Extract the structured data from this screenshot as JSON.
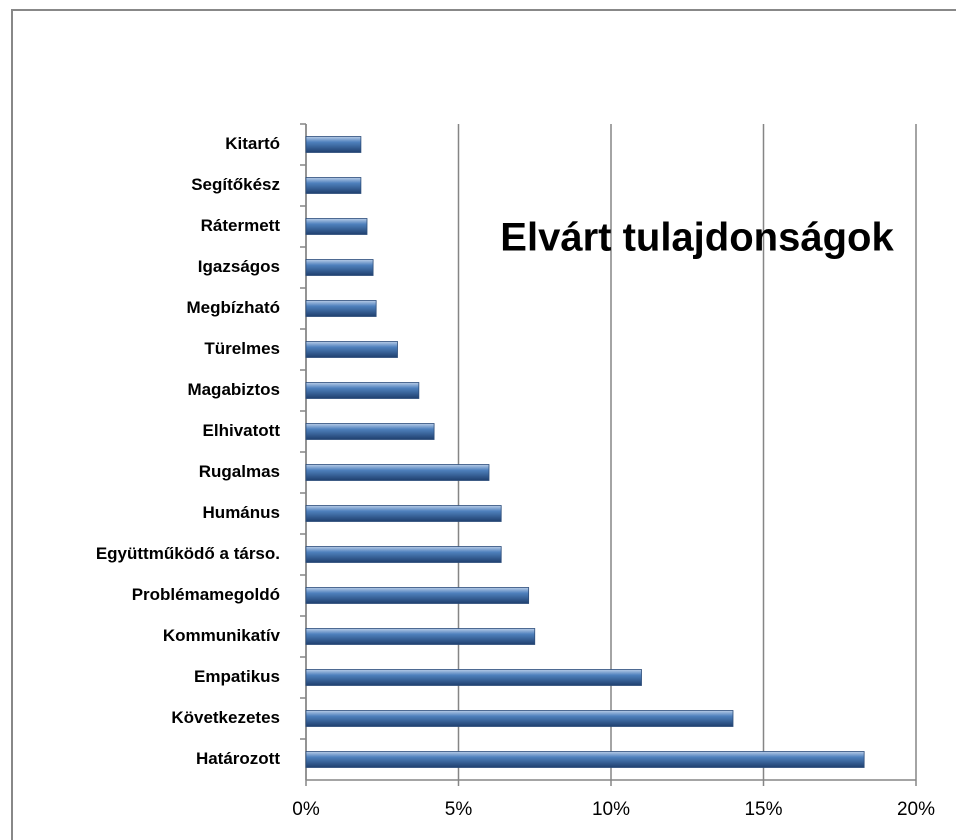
{
  "chart_data": {
    "type": "bar",
    "orientation": "horizontal",
    "title": "Elvárt tulajdonságok",
    "categories": [
      "Kitartó",
      "Segítőkész",
      "Rátermett",
      "Igazságos",
      "Megbízható",
      "Türelmes",
      "Magabiztos",
      "Elhivatott",
      "Rugalmas",
      "Humánus",
      "Együttműködő a társo.",
      "Problémamegoldó",
      "Kommunikatív",
      "Empatikus",
      "Következetes",
      "Határozott"
    ],
    "values": [
      1.8,
      1.8,
      2.0,
      2.2,
      2.3,
      3.0,
      3.7,
      4.2,
      6.0,
      6.4,
      6.4,
      7.3,
      7.5,
      11.0,
      14.0,
      18.3
    ],
    "color": "#4f81bd",
    "xlim": [
      0,
      20
    ],
    "xticks": [
      {
        "value": 0,
        "label": "0%"
      },
      {
        "value": 5,
        "label": "5%"
      },
      {
        "value": 10,
        "label": "10%"
      },
      {
        "value": 15,
        "label": "15%"
      },
      {
        "value": 20,
        "label": "20%"
      }
    ],
    "grid": true
  }
}
